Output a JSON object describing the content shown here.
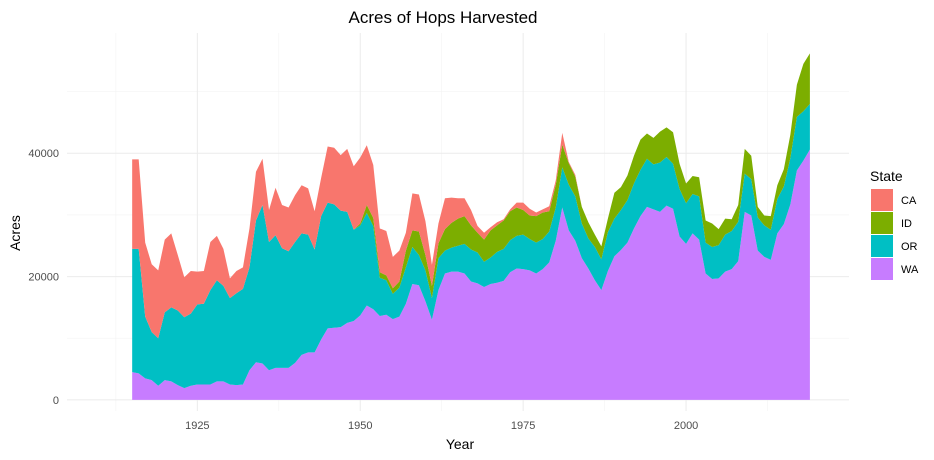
{
  "chart_data": {
    "type": "area",
    "stacked": true,
    "title": "Acres of Hops Harvested",
    "xlabel": "Year",
    "ylabel": "Acres",
    "xlim": [
      1905,
      2025
    ],
    "ylim": [
      -1800,
      59500
    ],
    "xticks": [
      1925,
      1950,
      1975,
      2000
    ],
    "yticks": [
      0,
      20000,
      40000
    ],
    "grid": true,
    "legend": {
      "title": "State",
      "position": "right"
    },
    "stack_order_bottom_to_top": [
      "WA",
      "OR",
      "ID",
      "CA"
    ],
    "x": [
      1915,
      1916,
      1917,
      1918,
      1919,
      1920,
      1921,
      1922,
      1923,
      1924,
      1925,
      1926,
      1927,
      1928,
      1929,
      1930,
      1931,
      1932,
      1933,
      1934,
      1935,
      1936,
      1937,
      1938,
      1939,
      1940,
      1941,
      1942,
      1943,
      1944,
      1945,
      1946,
      1947,
      1948,
      1949,
      1950,
      1951,
      1952,
      1953,
      1954,
      1955,
      1956,
      1957,
      1958,
      1959,
      1960,
      1961,
      1962,
      1963,
      1964,
      1965,
      1966,
      1967,
      1968,
      1969,
      1970,
      1971,
      1972,
      1973,
      1974,
      1975,
      1976,
      1977,
      1978,
      1979,
      1980,
      1981,
      1982,
      1983,
      1984,
      1985,
      1986,
      1987,
      1988,
      1989,
      1990,
      1991,
      1992,
      1993,
      1994,
      1995,
      1996,
      1997,
      1998,
      1999,
      2000,
      2001,
      2002,
      2003,
      2004,
      2005,
      2006,
      2007,
      2008,
      2009,
      2010,
      2011,
      2012,
      2013,
      2014,
      2015,
      2016,
      2017,
      2018,
      2019
    ],
    "series": [
      {
        "name": "WA",
        "color": "#C77CFF",
        "values": [
          4500,
          4300,
          3500,
          3200,
          2300,
          3200,
          3000,
          2400,
          1900,
          2300,
          2500,
          2500,
          2500,
          3000,
          3000,
          2500,
          2400,
          2500,
          4800,
          6100,
          5900,
          4800,
          5200,
          5200,
          5200,
          6000,
          7300,
          7700,
          7700,
          9800,
          11600,
          11700,
          11800,
          12500,
          12800,
          13700,
          15300,
          14700,
          13600,
          13800,
          13100,
          13500,
          15600,
          18800,
          18600,
          16000,
          13000,
          17800,
          20500,
          20800,
          20800,
          20500,
          19200,
          18900,
          18300,
          18800,
          19000,
          19300,
          20700,
          21300,
          21200,
          21000,
          20500,
          21200,
          22300,
          25800,
          31200,
          27500,
          25800,
          23000,
          21300,
          19400,
          17800,
          20900,
          23300,
          24300,
          25500,
          27800,
          29800,
          31300,
          30900,
          30500,
          31500,
          31000,
          26500,
          25300,
          27000,
          26000,
          20500,
          19600,
          19700,
          20800,
          21200,
          22500,
          30500,
          29900,
          24200,
          23200,
          22700,
          27000,
          28500,
          31700,
          37200,
          38800,
          40600
        ]
      },
      {
        "name": "OR",
        "color": "#00BFC4",
        "values": [
          24500,
          24500,
          13500,
          11000,
          10000,
          14200,
          15000,
          14500,
          13400,
          14000,
          15500,
          15600,
          17800,
          19400,
          18500,
          16500,
          17300,
          18000,
          21500,
          29100,
          31600,
          25600,
          26700,
          24600,
          24100,
          25600,
          27000,
          26800,
          24400,
          29800,
          32000,
          31700,
          30700,
          30500,
          27600,
          28300,
          30300,
          28200,
          19800,
          19400,
          17200,
          18200,
          21500,
          24800,
          23500,
          21000,
          16500,
          23000,
          24200,
          24700,
          25000,
          25300,
          24400,
          23900,
          22400,
          23100,
          24000,
          24500,
          25900,
          26600,
          26800,
          26100,
          25500,
          26100,
          27300,
          31200,
          37700,
          34900,
          33000,
          28600,
          26200,
          24800,
          22800,
          27200,
          29400,
          30800,
          32400,
          35100,
          37300,
          39100,
          38200,
          38500,
          39400,
          38300,
          34200,
          31900,
          33400,
          33000,
          25500,
          24800,
          25100,
          26800,
          27400,
          28900,
          36700,
          35800,
          29600,
          28300,
          27600,
          32600,
          34600,
          39200,
          45900,
          46800,
          48000
        ]
      },
      {
        "name": "ID",
        "color": "#7CAE00",
        "values": [
          24500,
          24500,
          13500,
          11000,
          10000,
          14200,
          15000,
          14500,
          13400,
          14000,
          15500,
          15600,
          17800,
          19400,
          18500,
          16500,
          17300,
          18000,
          21500,
          29100,
          31600,
          25600,
          26700,
          24600,
          24100,
          25600,
          27000,
          26800,
          24400,
          29800,
          32000,
          31700,
          30700,
          30500,
          27600,
          28600,
          31600,
          29500,
          20700,
          20200,
          18100,
          19200,
          24200,
          27500,
          27300,
          23500,
          18500,
          25400,
          27700,
          28700,
          29400,
          29800,
          28300,
          27100,
          26000,
          27500,
          28300,
          29100,
          30600,
          31200,
          30800,
          29900,
          29800,
          30400,
          30600,
          34900,
          41400,
          38400,
          36200,
          31300,
          28800,
          26800,
          24900,
          29400,
          33600,
          34500,
          36400,
          39600,
          42200,
          43200,
          42500,
          43500,
          44200,
          43400,
          38300,
          35100,
          36300,
          36100,
          29100,
          28600,
          27700,
          29400,
          29300,
          31600,
          40700,
          39600,
          31300,
          29900,
          29800,
          34800,
          37400,
          43000,
          51100,
          54500,
          56200
        ]
      },
      {
        "name": "CA",
        "color": "#F8766D",
        "values": [
          39000,
          39000,
          25500,
          22000,
          21000,
          26000,
          27000,
          23500,
          19900,
          20900,
          20800,
          20900,
          25600,
          26600,
          24500,
          19700,
          20900,
          21500,
          27800,
          37000,
          39100,
          30800,
          34400,
          31600,
          31200,
          33200,
          34800,
          34300,
          30600,
          36000,
          41100,
          40900,
          39700,
          40700,
          37900,
          39300,
          41300,
          38100,
          27800,
          27400,
          23200,
          24200,
          27100,
          33500,
          33300,
          29000,
          21900,
          28600,
          32700,
          32800,
          32700,
          32700,
          30800,
          28200,
          27100,
          28000,
          28800,
          29300,
          30900,
          32000,
          32000,
          31000,
          30400,
          30900,
          31400,
          35600,
          43300,
          38600,
          36500,
          31300,
          28800,
          26800,
          24900,
          29400,
          33600,
          34500,
          36400,
          39600,
          42200,
          43200,
          42500,
          43500,
          44200,
          43400,
          38300,
          35100,
          36300,
          36100,
          29100,
          28600,
          27700,
          29400,
          29300,
          31600,
          40700,
          39600,
          31300,
          29900,
          29800,
          34800,
          37400,
          43000,
          51100,
          54500,
          56200
        ]
      }
    ]
  }
}
